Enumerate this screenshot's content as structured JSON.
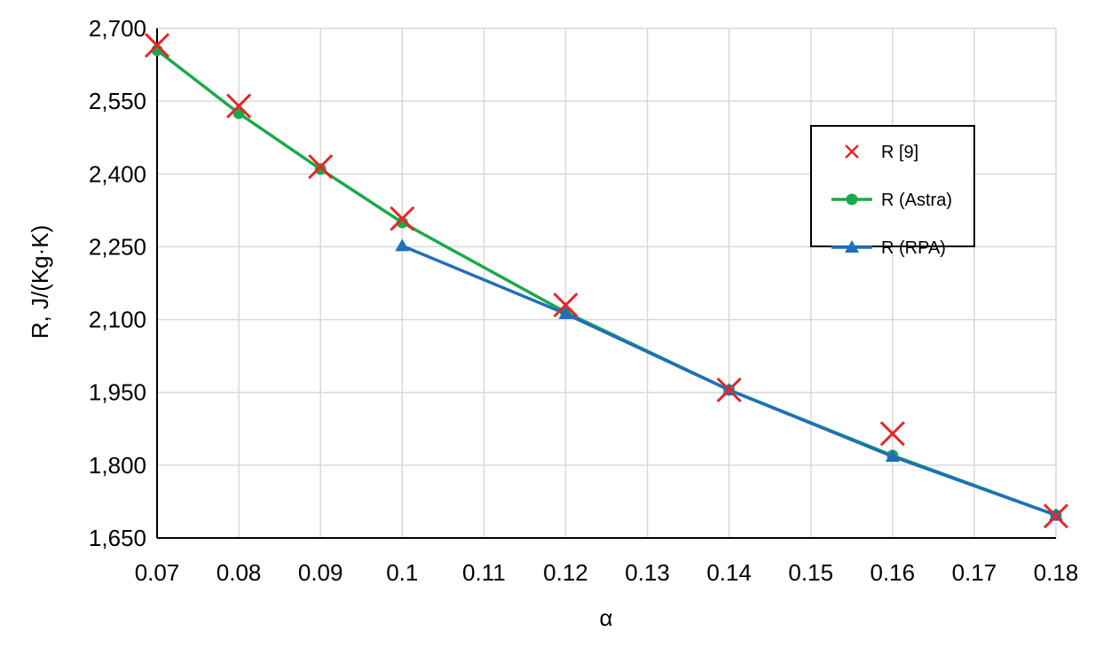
{
  "chart_data": {
    "type": "line",
    "xlabel": "α",
    "ylabel": "R, J/(Kg·K)",
    "xlim": [
      0.07,
      0.18
    ],
    "ylim": [
      1650,
      2700
    ],
    "x_ticks": [
      "0.07",
      "0.08",
      "0.09",
      "0.1",
      "0.11",
      "0.12",
      "0.13",
      "0.14",
      "0.15",
      "0.16",
      "0.17",
      "0.18"
    ],
    "y_ticks": [
      "1,650",
      "1,800",
      "1,950",
      "2,100",
      "2,250",
      "2,400",
      "2,550",
      "2,700"
    ],
    "grid": true,
    "legend_position": "top-right",
    "series": [
      {
        "name": "R [9]",
        "style": "markers-x",
        "color": "#e8262a",
        "x": [
          0.07,
          0.08,
          0.09,
          0.1,
          0.12,
          0.14,
          0.16,
          0.18
        ],
        "y": [
          2665,
          2540,
          2415,
          2308,
          2130,
          1955,
          1865,
          1695
        ]
      },
      {
        "name": "R (Astra)",
        "style": "line-circle",
        "color": "#1aaa4a",
        "x": [
          0.07,
          0.08,
          0.09,
          0.1,
          0.12,
          0.14,
          0.16,
          0.18
        ],
        "y": [
          2655,
          2525,
          2410,
          2300,
          2115,
          1955,
          1820,
          1697
        ]
      },
      {
        "name": "R (RPA)",
        "style": "line-triangle",
        "color": "#1f6fba",
        "x": [
          0.1,
          0.12,
          0.14,
          0.16,
          0.18
        ],
        "y": [
          2252,
          2112,
          1955,
          1818,
          1697
        ]
      }
    ]
  }
}
